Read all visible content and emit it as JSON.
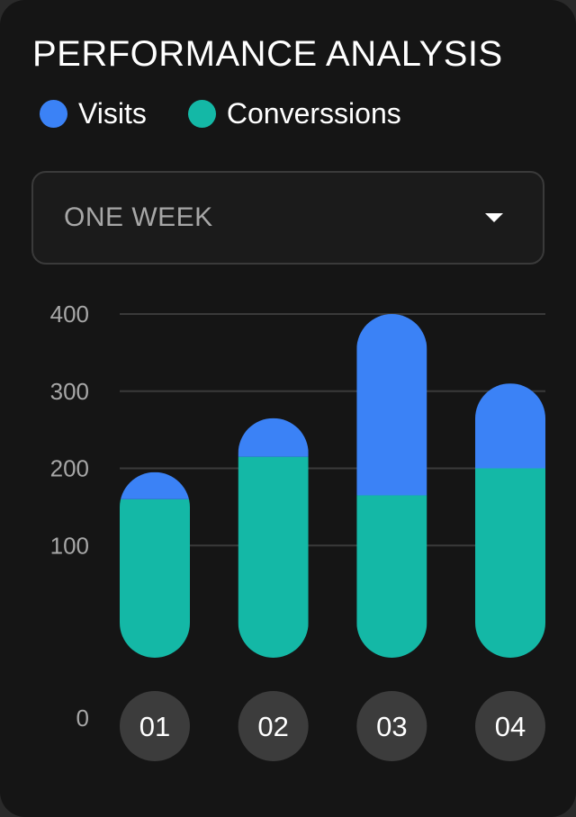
{
  "header": {
    "title": "PERFORMANCE ANALYSIS"
  },
  "legend": [
    {
      "label": "Visits",
      "color": "#3b82f6"
    },
    {
      "label": "Converssions",
      "color": "#14b8a6"
    }
  ],
  "period_select": {
    "value": "ONE WEEK",
    "icon": "chevron-down-icon"
  },
  "colors": {
    "background": "#151515",
    "grid": "#3a3a3a",
    "category_chip": "#3c3c3c"
  },
  "chart_data": {
    "type": "bar",
    "stacked": true,
    "categories": [
      "01",
      "02",
      "03",
      "04"
    ],
    "series": [
      {
        "name": "Converssions",
        "values": [
          160,
          215,
          165,
          200
        ],
        "color": "#14b8a6"
      },
      {
        "name": "Visits",
        "values": [
          35,
          50,
          235,
          110
        ],
        "color": "#3b82f6"
      }
    ],
    "yticks": [
      0,
      100,
      200,
      300,
      400
    ],
    "ylim": [
      0,
      400
    ],
    "grid": true,
    "legend_position": "top"
  }
}
